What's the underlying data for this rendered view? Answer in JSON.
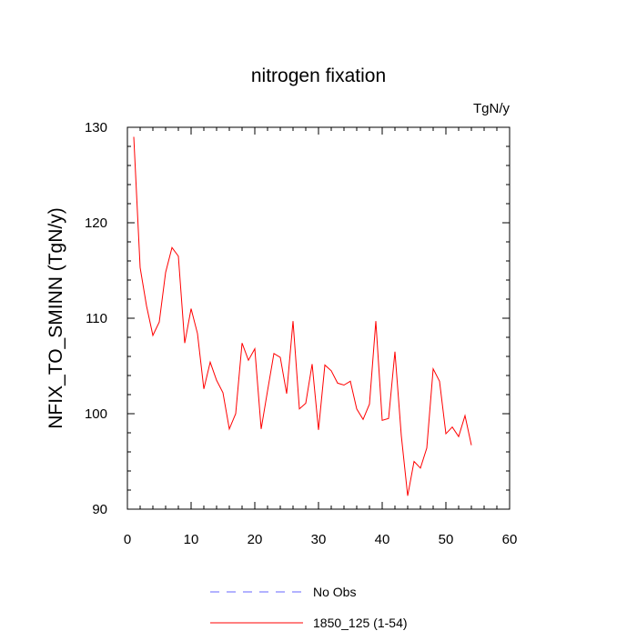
{
  "chart_data": {
    "type": "line",
    "title": "nitrogen fixation",
    "units": "TgN/y",
    "xlabel": "",
    "ylabel": "NFIX_TO_SMINN  (TgN/y)",
    "xlim": [
      0,
      60
    ],
    "ylim": [
      90,
      130
    ],
    "x_ticks": [
      0,
      10,
      20,
      30,
      40,
      50,
      60
    ],
    "y_ticks": [
      90,
      100,
      110,
      120,
      130
    ],
    "x_tick_labels": [
      "0",
      "10",
      "20",
      "30",
      "40",
      "50",
      "60"
    ],
    "y_tick_labels": [
      "90",
      "100",
      "110",
      "120",
      "130"
    ],
    "grid": false,
    "series": [
      {
        "name": "1850_125 (1-54)",
        "color": "#ff0000",
        "style": "solid",
        "x": [
          1,
          2,
          3,
          4,
          5,
          6,
          7,
          8,
          9,
          10,
          11,
          12,
          13,
          14,
          15,
          16,
          17,
          18,
          19,
          20,
          21,
          22,
          23,
          24,
          25,
          26,
          27,
          28,
          29,
          30,
          31,
          32,
          33,
          34,
          35,
          36,
          37,
          38,
          39,
          40,
          41,
          42,
          43,
          44,
          45,
          46,
          47,
          48,
          49,
          50,
          51,
          52,
          53,
          54
        ],
        "values": [
          129.0,
          115.3,
          111.3,
          108.2,
          109.6,
          114.8,
          117.4,
          116.5,
          107.4,
          111.0,
          108.4,
          102.6,
          105.4,
          103.5,
          102.2,
          98.4,
          100.0,
          107.4,
          105.6,
          106.8,
          98.4,
          102.4,
          106.3,
          105.9,
          102.1,
          109.7,
          100.5,
          101.1,
          105.2,
          98.3,
          105.1,
          104.5,
          103.2,
          103.0,
          103.4,
          100.5,
          99.4,
          101.0,
          109.7,
          99.3,
          99.5,
          106.5,
          97.7,
          91.4,
          95.0,
          94.3,
          96.4,
          104.7,
          103.4,
          97.9,
          98.6,
          97.6,
          99.8,
          96.7
        ]
      }
    ],
    "legend": [
      {
        "label": "No Obs",
        "color": "#6666ff",
        "style": "dashed"
      },
      {
        "label": "1850_125 (1-54)",
        "color": "#ff0000",
        "style": "solid"
      }
    ],
    "legend_position": "bottom-center"
  }
}
